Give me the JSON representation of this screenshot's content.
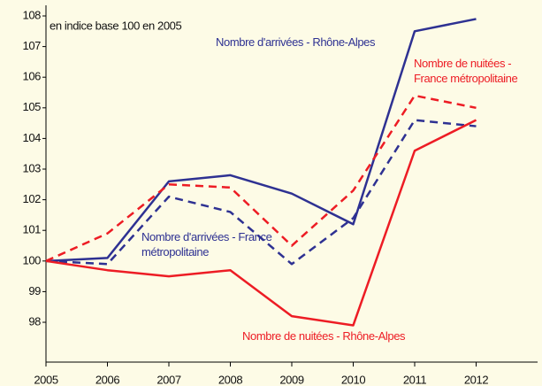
{
  "chart_data": {
    "type": "line",
    "subtitle": "en indice base 100 en 2005",
    "x": [
      2005,
      2006,
      2007,
      2008,
      2009,
      2010,
      2011,
      2012
    ],
    "xlim": [
      2005,
      2013
    ],
    "xticks": [
      2005,
      2006,
      2007,
      2008,
      2009,
      2010,
      2011,
      2012
    ],
    "ylim": [
      96.7,
      108
    ],
    "yticks": [
      98,
      99,
      100,
      101,
      102,
      103,
      104,
      105,
      106,
      107,
      108
    ],
    "grid": false,
    "series": [
      {
        "name": "Nombre d'arrivées - Rhône-Alpes",
        "color": "#2e3192",
        "dash": false,
        "values": [
          100,
          100.1,
          102.6,
          102.8,
          102.2,
          101.2,
          107.5,
          107.9
        ]
      },
      {
        "name": "Nombre d'arrivées - France métropolitaine",
        "color": "#2e3192",
        "dash": true,
        "values": [
          100,
          99.9,
          102.1,
          101.6,
          99.9,
          101.4,
          104.6,
          104.4
        ]
      },
      {
        "name": "Nombre de nuitées - France métropolitaine",
        "color": "#ed1c24",
        "dash": true,
        "values": [
          100,
          100.9,
          102.5,
          102.4,
          100.5,
          102.3,
          105.4,
          105.0
        ]
      },
      {
        "name": "Nombre de nuitées - Rhône-Alpes",
        "color": "#ed1c24",
        "dash": false,
        "values": [
          100,
          99.7,
          99.5,
          99.7,
          98.2,
          97.9,
          103.6,
          104.6
        ]
      }
    ]
  }
}
